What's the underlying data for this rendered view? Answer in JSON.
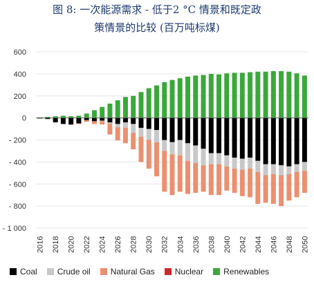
{
  "chart_data": {
    "type": "bar",
    "stacked": true,
    "title_line1": "图 8: 一次能源需求 - 低于2 °C 情景和既定政",
    "title_line2": "策情景的比较 (百万吨标煤)",
    "xlabel": "",
    "ylabel": "",
    "ylim": [
      -1000,
      600
    ],
    "yticks": [
      600,
      400,
      200,
      0,
      -200,
      -400,
      -600,
      -800,
      -1000
    ],
    "ytick_labels": [
      "600",
      "400",
      "200",
      "0",
      "- 200",
      "- 400",
      "- 600",
      "- 800",
      "- 1 000"
    ],
    "x": [
      2016,
      2017,
      2018,
      2019,
      2020,
      2021,
      2022,
      2023,
      2024,
      2025,
      2026,
      2027,
      2028,
      2029,
      2030,
      2031,
      2032,
      2033,
      2034,
      2035,
      2036,
      2037,
      2038,
      2039,
      2040,
      2041,
      2042,
      2043,
      2044,
      2045,
      2046,
      2047,
      2048,
      2049,
      2050
    ],
    "xtick_labels": [
      "2016",
      "2018",
      "2020",
      "2022",
      "2024",
      "2026",
      "2028",
      "2030",
      "2032",
      "2034",
      "2036",
      "2038",
      "2040",
      "2042",
      "2044",
      "2046",
      "2048",
      "2050"
    ],
    "legend_position": "bottom",
    "series": [
      {
        "name": "Coal",
        "color": "#000000",
        "values": [
          -5,
          -10,
          -40,
          -55,
          -60,
          -50,
          -20,
          -30,
          -25,
          -40,
          -55,
          -40,
          -55,
          -90,
          -100,
          -110,
          -200,
          -220,
          -200,
          -230,
          -250,
          -280,
          -320,
          -320,
          -340,
          -360,
          -370,
          -360,
          -390,
          -420,
          -420,
          -430,
          -440,
          -420,
          -400
        ]
      },
      {
        "name": "Crude oil",
        "color": "#c8c8c8",
        "values": [
          0,
          0,
          0,
          0,
          -5,
          0,
          0,
          0,
          -5,
          -10,
          -30,
          -50,
          -80,
          -80,
          -100,
          -110,
          -100,
          -110,
          -140,
          -160,
          -160,
          -150,
          -100,
          -100,
          -100,
          -100,
          -100,
          -100,
          -100,
          -100,
          -90,
          -90,
          -70,
          -70,
          -80
        ]
      },
      {
        "name": "Natural Gas",
        "color": "#ea9070",
        "values": [
          0,
          0,
          0,
          0,
          0,
          -5,
          -15,
          -25,
          -30,
          -100,
          -120,
          -140,
          -150,
          -230,
          -260,
          -310,
          -370,
          -370,
          -330,
          -300,
          -270,
          -240,
          -280,
          -280,
          -220,
          -220,
          -240,
          -260,
          -290,
          -250,
          -270,
          -280,
          -240,
          -230,
          -200
        ]
      },
      {
        "name": "Nuclear",
        "color": "#cc2a2a",
        "values": [
          0,
          0,
          0,
          0,
          0,
          0,
          0,
          0,
          0,
          0,
          0,
          0,
          0,
          0,
          0,
          0,
          0,
          0,
          0,
          0,
          0,
          0,
          0,
          0,
          0,
          0,
          0,
          0,
          0,
          0,
          0,
          0,
          0,
          0,
          0
        ]
      },
      {
        "name": "Renewables",
        "color": "#3aa83a",
        "values": [
          5,
          10,
          15,
          20,
          15,
          20,
          40,
          70,
          100,
          130,
          160,
          190,
          200,
          235,
          270,
          295,
          325,
          345,
          360,
          375,
          385,
          390,
          400,
          395,
          405,
          410,
          410,
          415,
          420,
          420,
          425,
          425,
          420,
          405,
          385
        ]
      }
    ]
  },
  "legend": {
    "coal": "Coal",
    "crude_oil": "Crude oil",
    "natural_gas": "Natural Gas",
    "nuclear": "Nuclear",
    "renewables": "Renewables"
  }
}
